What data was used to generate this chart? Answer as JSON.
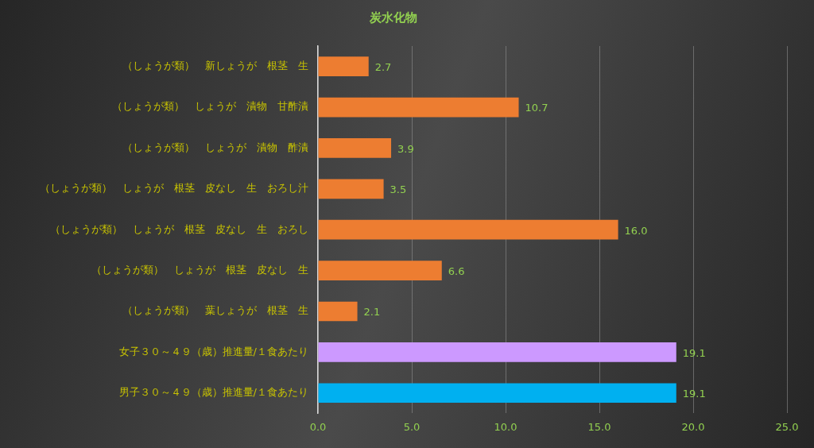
{
  "chart_data": {
    "type": "bar",
    "orientation": "horizontal",
    "title": "炭水化物",
    "categories": [
      "（しょうが類）　新しょうが　根茎　生",
      "（しょうが類）　しょうが　漬物　甘酢漬",
      "（しょうが類）　しょうが　漬物　酢漬",
      "（しょうが類）　しょうが　根茎　皮なし　生　おろし汁",
      "（しょうが類）　しょうが　根茎　皮なし　生　おろし",
      "（しょうが類）　しょうが　根茎　皮なし　生",
      "（しょうが類）　葉しょうが　根茎　生",
      "女子３０～４９（歳）推進量/１食あたり",
      "男子３０～４９（歳）推進量/１食あたり"
    ],
    "values": [
      2.7,
      10.7,
      3.9,
      3.5,
      16.0,
      6.6,
      2.1,
      19.1,
      19.1
    ],
    "value_labels": [
      "2.7",
      "10.7",
      "3.9",
      "3.5",
      "16.0",
      "6.6",
      "2.1",
      "19.1",
      "19.1"
    ],
    "colors": [
      "#ed7d31",
      "#ed7d31",
      "#ed7d31",
      "#ed7d31",
      "#ed7d31",
      "#ed7d31",
      "#ed7d31",
      "#cc99ff",
      "#00b0f0"
    ],
    "xlim": [
      0,
      25
    ],
    "xticks": [
      {
        "value": 0,
        "label": "0.0"
      },
      {
        "value": 5,
        "label": "5.0"
      },
      {
        "value": 10,
        "label": "10.0"
      },
      {
        "value": 15,
        "label": "15.0"
      },
      {
        "value": 20,
        "label": "20.0"
      },
      {
        "value": 25,
        "label": "25.0"
      }
    ],
    "grid": "x",
    "legend": false
  }
}
